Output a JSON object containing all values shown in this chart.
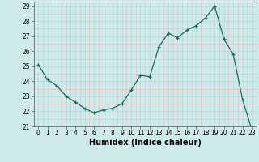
{
  "x": [
    0,
    1,
    2,
    3,
    4,
    5,
    6,
    7,
    8,
    9,
    10,
    11,
    12,
    13,
    14,
    15,
    16,
    17,
    18,
    19,
    20,
    21,
    22,
    23
  ],
  "y": [
    25.1,
    24.1,
    23.7,
    23.0,
    22.6,
    22.2,
    21.9,
    22.1,
    22.2,
    22.5,
    23.4,
    24.4,
    24.3,
    26.3,
    27.2,
    26.9,
    27.4,
    27.7,
    28.2,
    29.0,
    26.8,
    25.8,
    22.8,
    20.8
  ],
  "line_color": "#1a6b5a",
  "marker": "+",
  "marker_color": "#1a6b5a",
  "bg_color": "#ceeaea",
  "grid_major_color": "#b8d8d8",
  "grid_minor_color": "#e8b8b8",
  "xlabel": "Humidex (Indice chaleur)",
  "xlim": [
    -0.5,
    23.5
  ],
  "ylim": [
    21,
    29.3
  ],
  "yticks": [
    21,
    22,
    23,
    24,
    25,
    26,
    27,
    28,
    29
  ],
  "xticks": [
    0,
    1,
    2,
    3,
    4,
    5,
    6,
    7,
    8,
    9,
    10,
    11,
    12,
    13,
    14,
    15,
    16,
    17,
    18,
    19,
    20,
    21,
    22,
    23
  ],
  "tick_fontsize": 5.5,
  "xlabel_fontsize": 7
}
